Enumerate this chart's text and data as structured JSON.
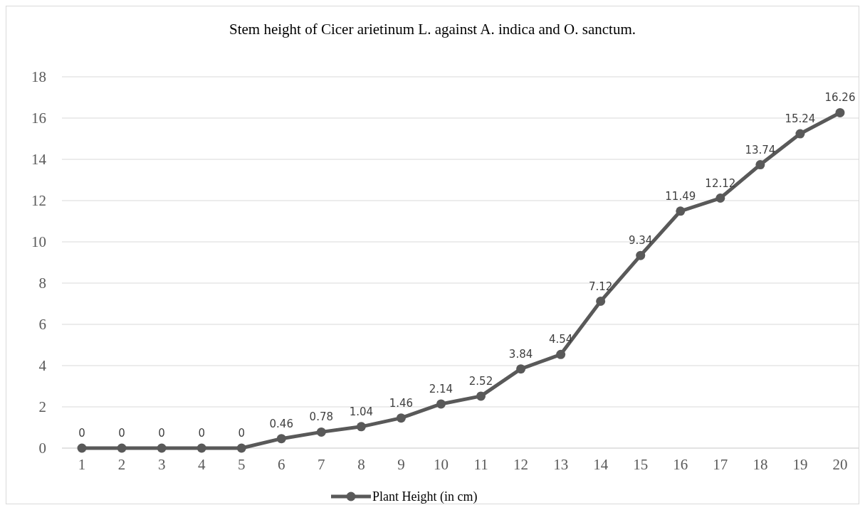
{
  "chart_data": {
    "type": "line",
    "title": "Stem height of Cicer arietinum L. against A. indica and O. sanctum.",
    "categories": [
      "1",
      "2",
      "3",
      "4",
      "5",
      "6",
      "7",
      "8",
      "9",
      "10",
      "11",
      "12",
      "13",
      "14",
      "15",
      "16",
      "17",
      "18",
      "19",
      "20"
    ],
    "series": [
      {
        "name": "Plant Height (in cm)",
        "color": "#595959",
        "values": [
          0,
          0,
          0,
          0,
          0,
          0.46,
          0.78,
          1.04,
          1.46,
          2.14,
          2.52,
          3.84,
          4.54,
          7.12,
          9.34,
          11.49,
          12.12,
          13.74,
          15.24,
          16.26
        ]
      }
    ],
    "ylim": [
      0,
      18
    ],
    "yticks": [
      0,
      2,
      4,
      6,
      8,
      10,
      12,
      14,
      16,
      18
    ],
    "grid": "y",
    "legend": "bottom",
    "marker": "circle",
    "line_style": "solid",
    "data_labels": true
  }
}
